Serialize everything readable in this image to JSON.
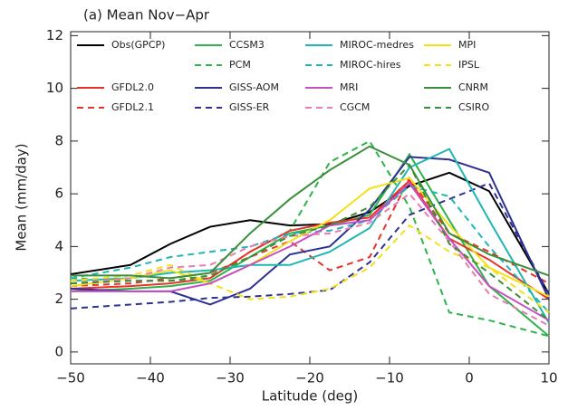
{
  "chart_data": {
    "type": "line",
    "title": "(a) Mean  Nov−Apr",
    "xlabel": "Latitude (deg)",
    "ylabel": "Mean (mm/day)",
    "x": [
      -50,
      -42.5,
      -37.5,
      -32.5,
      -27.5,
      -22.5,
      -17.5,
      -12.5,
      -7.5,
      -2.5,
      2.5,
      10
    ],
    "xlim": [
      -50,
      10
    ],
    "ylim": [
      -0.45,
      12.15
    ],
    "xticks": [
      {
        "value": -50,
        "label": "−50"
      },
      {
        "value": -40,
        "label": "−40"
      },
      {
        "value": -30,
        "label": "−30"
      },
      {
        "value": -20,
        "label": "−20"
      },
      {
        "value": -10,
        "label": "−10"
      },
      0,
      10
    ],
    "yticks": [
      0,
      2,
      4,
      6,
      8,
      10,
      12
    ],
    "series": [
      {
        "name": "Obs(GPCP)",
        "color": "#000000",
        "dashed": false,
        "values": [
          2.95,
          3.3,
          4.1,
          4.75,
          5.0,
          4.8,
          4.85,
          5.3,
          6.3,
          6.8,
          6.1,
          2.2
        ]
      },
      {
        "name": "CCSM3",
        "color": "#2db34a",
        "dashed": false,
        "values": [
          2.3,
          2.4,
          2.5,
          2.7,
          3.6,
          4.5,
          4.8,
          5.2,
          7.5,
          5.0,
          2.5,
          0.6
        ]
      },
      {
        "name": "PCM",
        "color": "#2db34a",
        "dashed": true,
        "values": [
          2.8,
          2.7,
          2.7,
          2.8,
          3.8,
          4.6,
          7.2,
          8.0,
          5.5,
          1.5,
          1.2,
          0.6
        ]
      },
      {
        "name": "GFDL2.0",
        "color": "#e8332a",
        "dashed": false,
        "values": [
          2.4,
          2.5,
          2.6,
          2.8,
          3.8,
          4.6,
          4.9,
          5.1,
          6.5,
          4.3,
          3.5,
          2.0
        ]
      },
      {
        "name": "GFDL2.1",
        "color": "#e8332a",
        "dashed": true,
        "values": [
          2.5,
          2.6,
          2.8,
          3.0,
          3.6,
          4.2,
          3.1,
          3.6,
          6.6,
          4.5,
          3.8,
          2.6
        ]
      },
      {
        "name": "GISS-AOM",
        "color": "#2e3192",
        "dashed": false,
        "values": [
          2.4,
          2.3,
          2.3,
          1.8,
          2.4,
          3.7,
          4.0,
          5.4,
          7.4,
          7.3,
          6.8,
          2.0
        ]
      },
      {
        "name": "GISS-ER",
        "color": "#2e3192",
        "dashed": true,
        "values": [
          1.65,
          1.8,
          1.9,
          2.05,
          2.1,
          2.2,
          2.35,
          3.4,
          5.2,
          5.8,
          6.4,
          2.2
        ]
      },
      {
        "name": "MIROC-medres",
        "color": "#1fb5b5",
        "dashed": false,
        "values": [
          2.7,
          2.8,
          3.0,
          3.1,
          3.3,
          3.3,
          3.8,
          4.7,
          7.0,
          7.7,
          5.0,
          1.1
        ]
      },
      {
        "name": "MIROC-hires",
        "color": "#1fb5b5",
        "dashed": true,
        "values": [
          2.8,
          3.2,
          3.6,
          3.8,
          4.0,
          4.5,
          4.6,
          5.0,
          6.3,
          5.9,
          4.0,
          1.5
        ]
      },
      {
        "name": "MPI",
        "color": "#f2e01a",
        "dashed": false,
        "values": [
          2.5,
          2.8,
          3.1,
          2.6,
          3.3,
          4.2,
          5.0,
          6.2,
          6.6,
          4.8,
          3.2,
          2.1
        ]
      },
      {
        "name": "IPSL",
        "color": "#f2e01a",
        "dashed": true,
        "values": [
          2.7,
          2.9,
          3.3,
          2.6,
          2.0,
          2.1,
          2.4,
          3.2,
          4.8,
          3.8,
          3.2,
          1.5
        ]
      },
      {
        "name": "MRI",
        "color": "#c84fc1",
        "dashed": false,
        "values": [
          2.3,
          2.3,
          2.3,
          2.6,
          3.3,
          4.0,
          4.8,
          5.0,
          6.4,
          4.3,
          2.5,
          1.2
        ]
      },
      {
        "name": "CGCM",
        "color": "#e87bb0",
        "dashed": true,
        "values": [
          2.6,
          2.8,
          3.2,
          3.3,
          4.0,
          4.4,
          4.5,
          4.9,
          6.0,
          4.2,
          2.2,
          1.0
        ]
      },
      {
        "name": "CNRM",
        "color": "#3a8f3a",
        "dashed": false,
        "values": [
          2.9,
          2.9,
          2.8,
          3.0,
          4.5,
          5.8,
          6.9,
          7.8,
          7.1,
          4.5,
          3.7,
          2.9
        ]
      },
      {
        "name": "CSIRO",
        "color": "#3a8f3a",
        "dashed": true,
        "values": [
          2.6,
          2.7,
          2.7,
          2.9,
          3.6,
          4.4,
          4.8,
          5.5,
          7.1,
          4.1,
          3.0,
          1.2
        ]
      }
    ]
  }
}
